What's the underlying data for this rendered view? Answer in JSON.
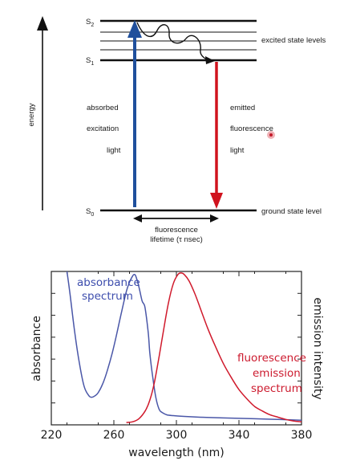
{
  "diagram": {
    "levels": {
      "s2_base": "S",
      "s2_sub": "2",
      "s1_base": "S",
      "s1_sub": "1",
      "s0_base": "S",
      "s0_sub": "0"
    },
    "labels": {
      "energy": "energy",
      "excited_state_levels": "excited state levels",
      "ground_state_level": "ground state level",
      "absorbed": "absorbed",
      "excitation": "excitation",
      "light_left": "light",
      "emitted": "emitted",
      "fluorescence": "fluorescence",
      "light_right": "light",
      "lifetime_line1": "fluorescence",
      "lifetime_line2": "lifetime (τ nsec)"
    },
    "colors": {
      "absorption_arrow": "#1f4f9c",
      "emission_arrow": "#d0131e",
      "cursor_dot": "#e57d86"
    }
  },
  "chart_data": {
    "type": "line",
    "xlabel": "wavelength (nm)",
    "ylabel_left": "absorbance",
    "ylabel_right": "emission intensity",
    "xlim": [
      220,
      380
    ],
    "ylim": [
      0,
      1
    ],
    "x_ticks": [
      "220",
      "260",
      "300",
      "340",
      "380"
    ],
    "series": [
      {
        "name": "absorbance spectrum",
        "label_line1": "absorbance",
        "label_line2": "spectrum",
        "color": "#4a57a8",
        "x": [
          230,
          232,
          235,
          238,
          241,
          244,
          246,
          248,
          250,
          253,
          256,
          259,
          262,
          265,
          268,
          270,
          272,
          273,
          274,
          276,
          278,
          279,
          280,
          282,
          283,
          285,
          287,
          289,
          291,
          294,
          298,
          305,
          315,
          330,
          350,
          365,
          380
        ],
        "y": [
          1.0,
          0.85,
          0.6,
          0.4,
          0.25,
          0.19,
          0.18,
          0.19,
          0.21,
          0.27,
          0.36,
          0.47,
          0.6,
          0.74,
          0.87,
          0.93,
          0.97,
          0.98,
          0.97,
          0.9,
          0.81,
          0.79,
          0.76,
          0.6,
          0.47,
          0.3,
          0.17,
          0.1,
          0.08,
          0.065,
          0.06,
          0.055,
          0.05,
          0.045,
          0.04,
          0.035,
          0.03
        ]
      },
      {
        "name": "fluorescence emission spectrum",
        "label_line1": "fluorescence",
        "label_line2": "emission",
        "label_line3": "spectrum",
        "color": "#d01a2c",
        "x": [
          268,
          272,
          276,
          280,
          283,
          286,
          289,
          292,
          295,
          298,
          301,
          303,
          305,
          308,
          312,
          316,
          320,
          325,
          330,
          335,
          340,
          345,
          350,
          355,
          360,
          365,
          370,
          375,
          380
        ],
        "y": [
          0.015,
          0.02,
          0.04,
          0.09,
          0.16,
          0.28,
          0.45,
          0.63,
          0.8,
          0.92,
          0.98,
          0.99,
          0.98,
          0.94,
          0.85,
          0.74,
          0.63,
          0.51,
          0.4,
          0.31,
          0.23,
          0.17,
          0.12,
          0.09,
          0.065,
          0.05,
          0.035,
          0.025,
          0.02
        ]
      }
    ]
  }
}
